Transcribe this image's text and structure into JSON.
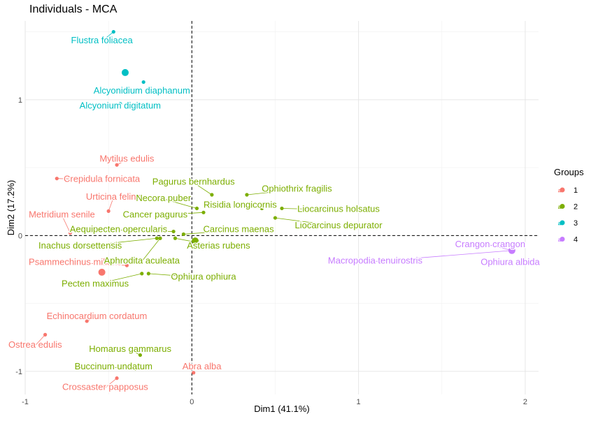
{
  "chart_data": {
    "type": "scatter",
    "title": "Individuals - MCA",
    "xlabel": "Dim1 (41.1%)",
    "ylabel": "Dim2 (17.2%)",
    "xlim": [
      -1.0,
      2.08
    ],
    "ylim": [
      -1.17,
      1.58
    ],
    "xticks": [
      -1,
      0,
      1,
      2
    ],
    "yticks": [
      -1,
      0,
      1
    ],
    "grid": true,
    "reference_lines": {
      "x": 0,
      "y": 0
    },
    "legend": {
      "title": "Groups",
      "placement": "right",
      "entries": [
        {
          "label": "1",
          "color": "#F8766D"
        },
        {
          "label": "2",
          "color": "#7CAE00"
        },
        {
          "label": "3",
          "color": "#00BFC4"
        },
        {
          "label": "4",
          "color": "#C77CFF"
        }
      ]
    },
    "centroids": [
      {
        "group": "1",
        "x": -0.54,
        "y": -0.27
      },
      {
        "group": "2",
        "x": 0.02,
        "y": -0.04
      },
      {
        "group": "3",
        "x": -0.4,
        "y": 1.2
      },
      {
        "group": "4",
        "x": 1.92,
        "y": -0.11
      }
    ],
    "points": [
      {
        "label": "Flustra foliacea",
        "group": "3",
        "x": -0.47,
        "y": 1.5,
        "lx": -0.54,
        "ly": 1.44
      },
      {
        "label": "Alcyonidium diaphanum",
        "group": "3",
        "x": -0.29,
        "y": 1.13,
        "lx": -0.3,
        "ly": 1.07
      },
      {
        "label": "Alcyonium digitatum",
        "group": "3",
        "x": -0.43,
        "y": 0.97,
        "lx": -0.43,
        "ly": 0.96
      },
      {
        "label": "Mytilus edulis",
        "group": "1",
        "x": -0.45,
        "y": 0.52,
        "lx": -0.39,
        "ly": 0.57
      },
      {
        "label": "Crepidula fornicata",
        "group": "1",
        "x": -0.81,
        "y": 0.42,
        "lx": -0.54,
        "ly": 0.42
      },
      {
        "label": "Urticina felina",
        "group": "1",
        "x": -0.5,
        "y": 0.18,
        "lx": -0.47,
        "ly": 0.29
      },
      {
        "label": "Metridium senile",
        "group": "1",
        "x": -0.73,
        "y": 0.02,
        "lx": -0.78,
        "ly": 0.16
      },
      {
        "label": "Psammechinus miliaris",
        "group": "1",
        "x": -0.39,
        "y": -0.22,
        "lx": -0.7,
        "ly": -0.19
      },
      {
        "label": "Echinocardium cordatum",
        "group": "1",
        "x": -0.63,
        "y": -0.63,
        "lx": -0.57,
        "ly": -0.59
      },
      {
        "label": "Ostrea edulis",
        "group": "1",
        "x": -0.88,
        "y": -0.73,
        "lx": -0.94,
        "ly": -0.8
      },
      {
        "label": "Crossaster papposus",
        "group": "1",
        "x": -0.45,
        "y": -1.05,
        "lx": -0.52,
        "ly": -1.11
      },
      {
        "label": "Abra alba",
        "group": "1",
        "x": 0.01,
        "y": -1.01,
        "lx": 0.06,
        "ly": -0.96
      },
      {
        "label": "Pagurus bernhardus",
        "group": "2",
        "x": 0.12,
        "y": 0.3,
        "lx": 0.01,
        "ly": 0.4
      },
      {
        "label": "Ophiothrix fragilis",
        "group": "2",
        "x": 0.33,
        "y": 0.3,
        "lx": 0.63,
        "ly": 0.35
      },
      {
        "label": "Necora puber",
        "group": "2",
        "x": 0.03,
        "y": 0.2,
        "lx": -0.17,
        "ly": 0.28
      },
      {
        "label": "Risidia longicornis",
        "group": "2",
        "x": 0.42,
        "y": 0.2,
        "lx": 0.29,
        "ly": 0.23
      },
      {
        "label": "Liocarcinus holsatus",
        "group": "2",
        "x": 0.54,
        "y": 0.2,
        "lx": 0.88,
        "ly": 0.2
      },
      {
        "label": "Cancer pagurus",
        "group": "2",
        "x": 0.07,
        "y": 0.17,
        "lx": -0.22,
        "ly": 0.16
      },
      {
        "label": "Liocarcinus depurator",
        "group": "2",
        "x": 0.5,
        "y": 0.13,
        "lx": 0.88,
        "ly": 0.08
      },
      {
        "label": "Aequipecten opercularis",
        "group": "2",
        "x": -0.11,
        "y": 0.03,
        "lx": -0.44,
        "ly": 0.05
      },
      {
        "label": "Carcinus maenas",
        "group": "2",
        "x": -0.05,
        "y": 0.01,
        "lx": 0.28,
        "ly": 0.05
      },
      {
        "label": "Inachus dorsettensis",
        "group": "2",
        "x": -0.21,
        "y": -0.02,
        "lx": -0.67,
        "ly": -0.07
      },
      {
        "label": "Asterias rubens",
        "group": "2",
        "x": -0.1,
        "y": -0.02,
        "lx": 0.16,
        "ly": -0.07
      },
      {
        "label": "Aphrodita aculeata",
        "group": "2",
        "x": -0.19,
        "y": -0.02,
        "lx": -0.3,
        "ly": -0.18
      },
      {
        "label": "Pecten maximus",
        "group": "2",
        "x": -0.3,
        "y": -0.28,
        "lx": -0.58,
        "ly": -0.35
      },
      {
        "label": "Ophiura ophiura",
        "group": "2",
        "x": -0.26,
        "y": -0.28,
        "lx": 0.07,
        "ly": -0.3
      },
      {
        "label": "Homarus gammarus",
        "group": "2",
        "x": -0.31,
        "y": -0.88,
        "lx": -0.37,
        "ly": -0.83
      },
      {
        "label": "Buccinum undatum",
        "group": "2",
        "x": -0.34,
        "y": -0.98,
        "lx": -0.47,
        "ly": -0.96
      },
      {
        "label": "Crangon crangon",
        "group": "4",
        "x": 1.92,
        "y": -0.11,
        "lx": 1.79,
        "ly": -0.06
      },
      {
        "label": "Macropodia tenuirostris",
        "group": "4",
        "x": 1.92,
        "y": -0.11,
        "lx": 1.1,
        "ly": -0.18
      },
      {
        "label": "Ophiura albida",
        "group": "4",
        "x": 1.92,
        "y": -0.11,
        "lx": 1.91,
        "ly": -0.19
      }
    ]
  }
}
